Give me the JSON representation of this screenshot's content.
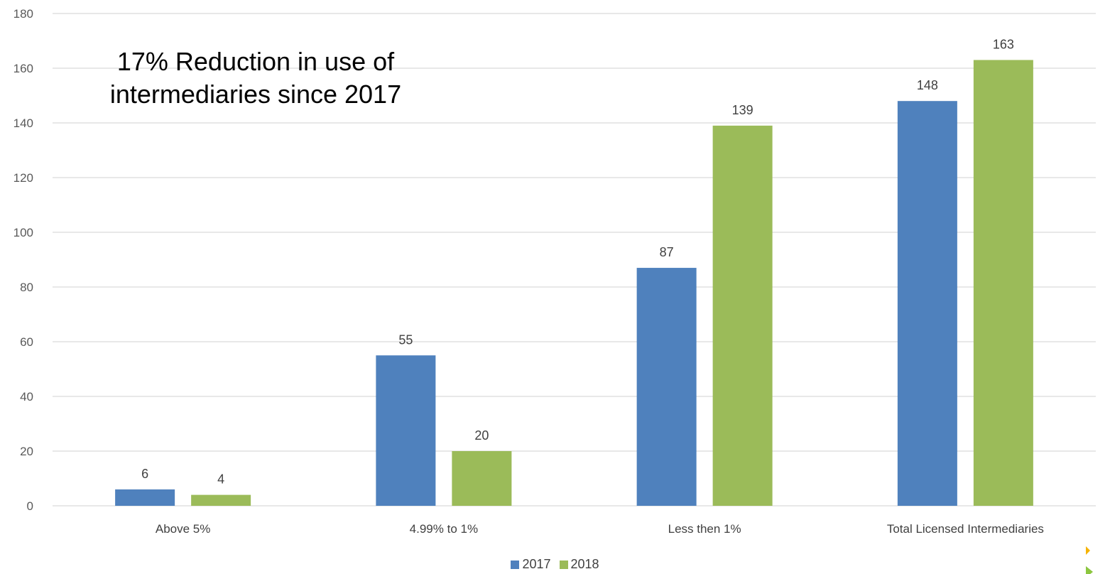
{
  "annotation": {
    "text": "17% Reduction in use of intermediaries since 2017"
  },
  "colors": {
    "series_2017": "#4f81bd",
    "series_2018": "#9bbb59",
    "grid": "#d9d9d9",
    "tick_text": "#595959",
    "label_text": "#404040",
    "marker_orange": "#f5b301",
    "marker_green": "#8cc63f"
  },
  "legend": {
    "position": "bottom",
    "items": [
      {
        "label": "2017",
        "color": "#4f81bd"
      },
      {
        "label": "2018",
        "color": "#9bbb59"
      }
    ]
  },
  "chart_data": {
    "type": "bar",
    "title": "",
    "xlabel": "",
    "ylabel": "",
    "ylim": [
      0,
      180
    ],
    "yticks": [
      0,
      20,
      40,
      60,
      80,
      100,
      120,
      140,
      160,
      180
    ],
    "grid": true,
    "categories": [
      "Above 5%",
      "4.99% to 1%",
      "Less then 1%",
      "Total Licensed Intermediaries"
    ],
    "series": [
      {
        "name": "2017",
        "values": [
          6,
          55,
          87,
          148
        ],
        "color": "#4f81bd"
      },
      {
        "name": "2018",
        "values": [
          4,
          20,
          139,
          163
        ],
        "color": "#9bbb59"
      }
    ],
    "data_labels": true
  }
}
